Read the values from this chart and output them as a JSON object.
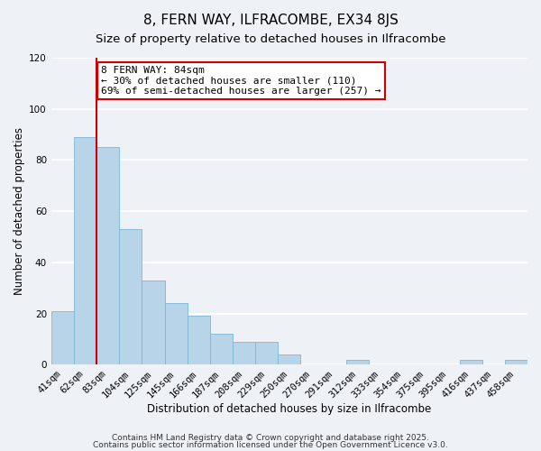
{
  "title": "8, FERN WAY, ILFRACOMBE, EX34 8JS",
  "subtitle": "Size of property relative to detached houses in Ilfracombe",
  "xlabel": "Distribution of detached houses by size in Ilfracombe",
  "ylabel": "Number of detached properties",
  "bar_labels": [
    "41sqm",
    "62sqm",
    "83sqm",
    "104sqm",
    "125sqm",
    "145sqm",
    "166sqm",
    "187sqm",
    "208sqm",
    "229sqm",
    "250sqm",
    "270sqm",
    "291sqm",
    "312sqm",
    "333sqm",
    "354sqm",
    "375sqm",
    "395sqm",
    "416sqm",
    "437sqm",
    "458sqm"
  ],
  "bar_values": [
    21,
    89,
    85,
    53,
    33,
    24,
    19,
    12,
    9,
    9,
    4,
    0,
    0,
    2,
    0,
    0,
    0,
    0,
    2,
    0,
    2
  ],
  "bar_color": "#b8d4e8",
  "bar_edge_color": "#7ab8d4",
  "vline_color": "#cc0000",
  "annotation_title": "8 FERN WAY: 84sqm",
  "annotation_line1": "← 30% of detached houses are smaller (110)",
  "annotation_line2": "69% of semi-detached houses are larger (257) →",
  "annotation_box_color": "#ffffff",
  "annotation_box_edge_color": "#cc0000",
  "ylim": [
    0,
    120
  ],
  "yticks": [
    0,
    20,
    40,
    60,
    80,
    100,
    120
  ],
  "footnote1": "Contains HM Land Registry data © Crown copyright and database right 2025.",
  "footnote2": "Contains public sector information licensed under the Open Government Licence v3.0.",
  "bg_color": "#eef2f7",
  "grid_color": "#ffffff",
  "title_fontsize": 11,
  "subtitle_fontsize": 9.5,
  "axis_label_fontsize": 8.5,
  "tick_fontsize": 7.5,
  "annotation_fontsize": 8,
  "footnote_fontsize": 6.5
}
